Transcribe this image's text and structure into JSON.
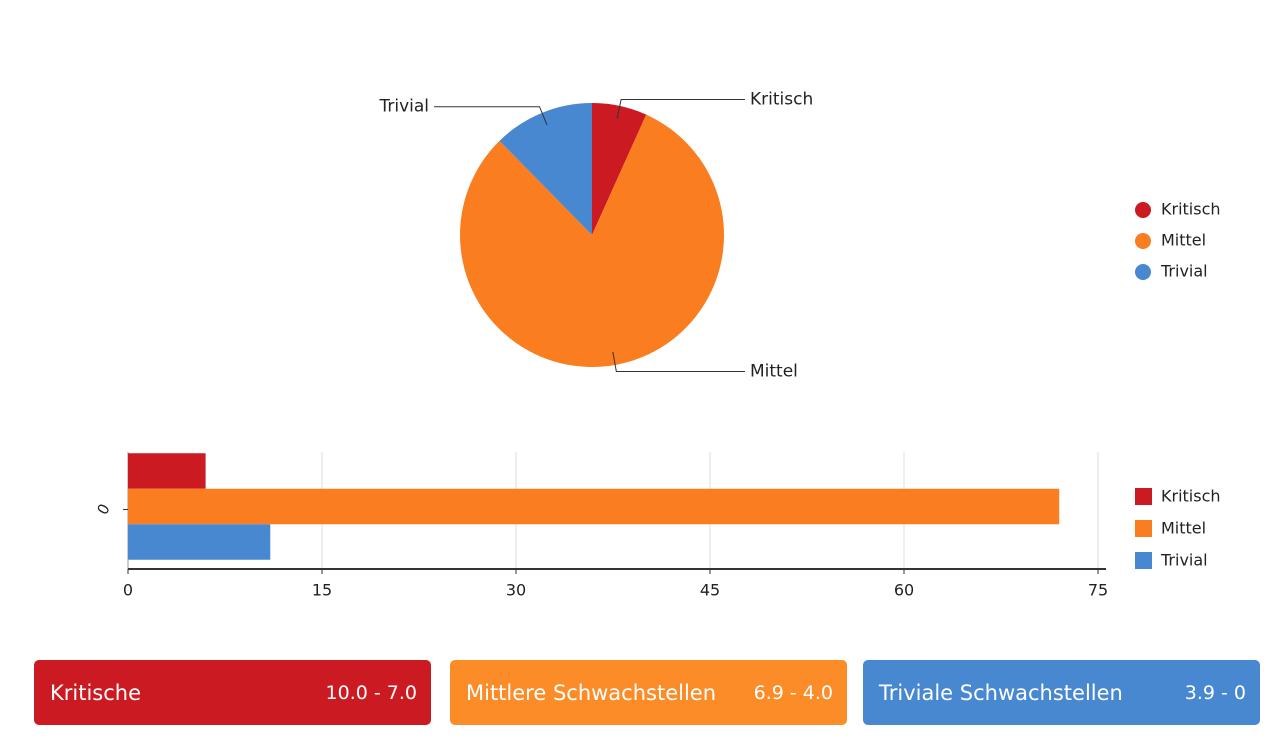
{
  "chart_data": [
    {
      "type": "pie",
      "categories": [
        "Kritisch",
        "Mittel",
        "Trivial"
      ],
      "values": [
        6,
        72,
        11
      ],
      "colors": [
        "#cc1a22",
        "#fa7d1f",
        "#4788d1"
      ],
      "legend": "right"
    },
    {
      "type": "hbar",
      "categories": [
        "0"
      ],
      "series": [
        {
          "name": "Kritisch",
          "color": "#cc1a22",
          "values": [
            6
          ]
        },
        {
          "name": "Mittel",
          "color": "#fa7d1f",
          "values": [
            72
          ]
        },
        {
          "name": "Trivial",
          "color": "#4788d1",
          "values": [
            11
          ]
        }
      ],
      "xlim": [
        0,
        75
      ],
      "xticks": [
        0,
        15,
        30,
        45,
        60,
        75
      ],
      "grid": true,
      "legend": "right"
    }
  ],
  "severity_levels": [
    {
      "label": "Kritische",
      "range": "10.0 - 7.0",
      "color": "#cc1a22"
    },
    {
      "label": "Mittlere Schwachstellen",
      "range": "6.9 - 4.0",
      "color": "#fc8c28"
    },
    {
      "label": "Triviale Schwachstellen",
      "range": "3.9 - 0",
      "color": "#4788d1"
    }
  ]
}
